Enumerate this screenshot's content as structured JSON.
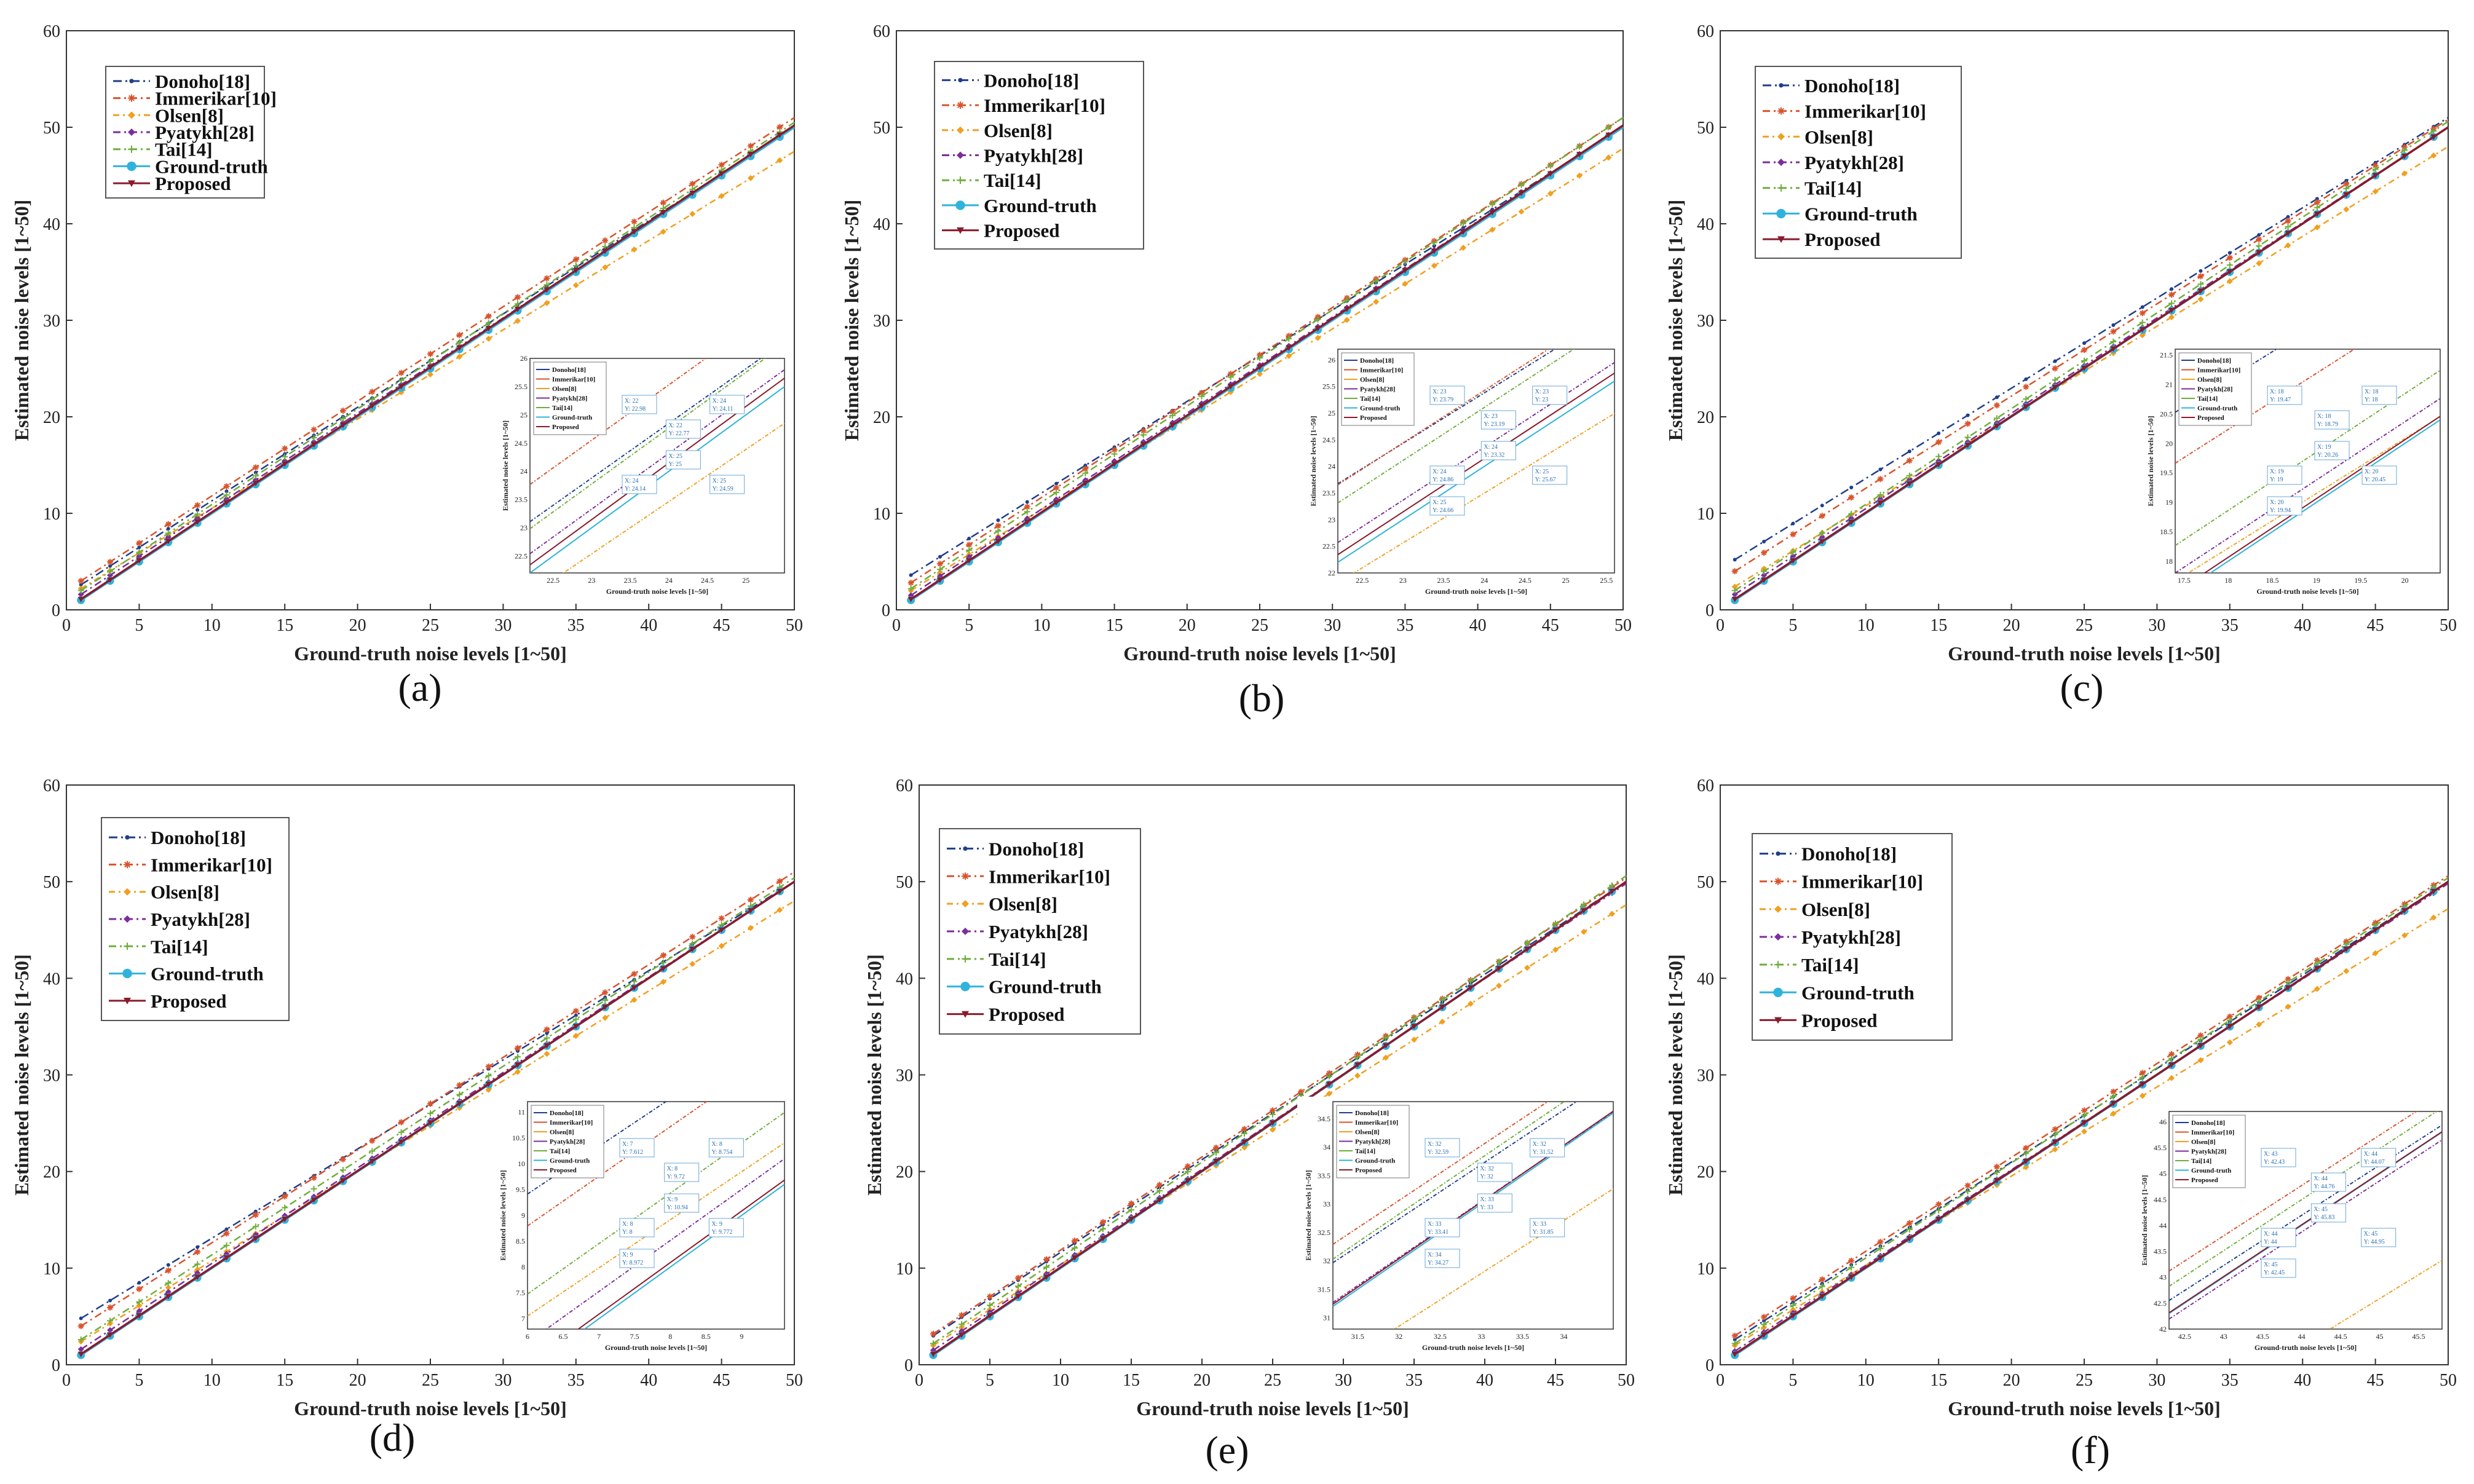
{
  "figure": {
    "panel_labels": [
      "(a)",
      "(b)",
      "(c)",
      "(d)",
      "(e)",
      "(f)"
    ]
  },
  "colors": {
    "Donoho[18]": "#1f3e8c",
    "Immerikar[10]": "#d9532b",
    "Olsen[8]": "#f0a020",
    "Pyatykh[28]": "#7b2e9c",
    "Tai[14]": "#6fae3a",
    "Ground-truth": "#2fb3dc",
    "Proposed": "#8b1a2b"
  },
  "chart_data": [
    {
      "type": "line",
      "panel": "(a)",
      "title": "",
      "xlabel": "Ground-truth noise levels [1~50]",
      "ylabel": "Estimated noise levels [1~50]",
      "xlim": [
        0,
        50
      ],
      "ylim": [
        0,
        60
      ],
      "xticks": [
        0,
        5,
        10,
        15,
        20,
        25,
        30,
        35,
        40,
        45,
        50
      ],
      "yticks": [
        0,
        10,
        20,
        30,
        40,
        50,
        60
      ],
      "legend_position": "top-left",
      "series": [
        {
          "name": "Donoho[18]",
          "x": [
            1,
            50
          ],
          "values": [
            2.6,
            50.0
          ]
        },
        {
          "name": "Immerikar[10]",
          "x": [
            1,
            50
          ],
          "values": [
            3.0,
            51.0
          ]
        },
        {
          "name": "Olsen[8]",
          "x": [
            1,
            50
          ],
          "values": [
            2.2,
            47.5
          ]
        },
        {
          "name": "Pyatykh[28]",
          "x": [
            1,
            50
          ],
          "values": [
            1.6,
            50.0
          ]
        },
        {
          "name": "Tai[14]",
          "x": [
            1,
            50
          ],
          "values": [
            2.0,
            50.5
          ]
        },
        {
          "name": "Ground-truth",
          "x": [
            1,
            50
          ],
          "values": [
            1.0,
            50.0
          ]
        },
        {
          "name": "Proposed",
          "x": [
            1,
            50
          ],
          "values": [
            1.1,
            50.2
          ]
        }
      ],
      "inset": {
        "xlabel": "Ground-truth noise levels [1~50]",
        "ylabel": "Estimated noise levels [1~50]",
        "xlim": [
          22.2,
          25.5
        ],
        "ylim": [
          22.2,
          26.0
        ],
        "xticks": [
          "22.5",
          "23",
          "23.5",
          "24",
          "24.5",
          "25"
        ],
        "yticks": [
          "22.5",
          "23",
          "23.5",
          "24",
          "24.5",
          "25",
          "25.5",
          "26"
        ],
        "callouts": [
          {
            "x": "X: 22",
            "y": "Y: 22.98"
          },
          {
            "x": "X: 22",
            "y": "Y: 22.77"
          },
          {
            "x": "X: 24",
            "y": "Y: 24.11"
          },
          {
            "x": "X: 24",
            "y": "Y: 24.14"
          },
          {
            "x": "X: 25",
            "y": "Y: 25"
          },
          {
            "x": "X: 25",
            "y": "Y: 24.59"
          }
        ]
      }
    },
    {
      "type": "line",
      "panel": "(b)",
      "title": "",
      "xlabel": "Ground-truth noise levels [1~50]",
      "ylabel": "Estimated noise levels [1~50]",
      "xlim": [
        0,
        50
      ],
      "ylim": [
        0,
        60
      ],
      "xticks": [
        0,
        5,
        10,
        15,
        20,
        25,
        30,
        35,
        40,
        45,
        50
      ],
      "yticks": [
        0,
        10,
        20,
        30,
        40,
        50,
        60
      ],
      "legend_position": "top-left",
      "series": [
        {
          "name": "Donoho[18]",
          "x": [
            1,
            50
          ],
          "values": [
            3.6,
            50.0
          ]
        },
        {
          "name": "Immerikar[10]",
          "x": [
            1,
            50
          ],
          "values": [
            2.8,
            51.0
          ]
        },
        {
          "name": "Olsen[8]",
          "x": [
            1,
            50
          ],
          "values": [
            2.0,
            47.8
          ]
        },
        {
          "name": "Pyatykh[28]",
          "x": [
            1,
            50
          ],
          "values": [
            1.5,
            50.2
          ]
        },
        {
          "name": "Tai[14]",
          "x": [
            1,
            50
          ],
          "values": [
            2.2,
            51.0
          ]
        },
        {
          "name": "Ground-truth",
          "x": [
            1,
            50
          ],
          "values": [
            1.0,
            50.0
          ]
        },
        {
          "name": "Proposed",
          "x": [
            1,
            50
          ],
          "values": [
            1.1,
            50.2
          ]
        }
      ],
      "inset": {
        "xlabel": "Ground-truth noise levels [1~50]",
        "ylabel": "Estimated noise levels [1~50]",
        "xlim": [
          22.2,
          25.6
        ],
        "ylim": [
          22.0,
          26.2
        ],
        "xticks": [
          "22.5",
          "23",
          "23.5",
          "24",
          "24.5",
          "25",
          "25.5"
        ],
        "yticks": [
          "22",
          "22.5",
          "23",
          "23.5",
          "24",
          "24.5",
          "25",
          "25.5",
          "26"
        ],
        "callouts": [
          {
            "x": "X: 23",
            "y": "Y: 23.79"
          },
          {
            "x": "X: 23",
            "y": "Y: 23.19"
          },
          {
            "x": "X: 23",
            "y": "Y: 23"
          },
          {
            "x": "X: 24",
            "y": "Y: 24.86"
          },
          {
            "x": "X: 24",
            "y": "Y: 23.32"
          },
          {
            "x": "X: 25",
            "y": "Y: 25.67"
          },
          {
            "x": "X: 25",
            "y": "Y: 24.66"
          }
        ]
      }
    },
    {
      "type": "line",
      "panel": "(c)",
      "title": "",
      "xlabel": "Ground-truth noise levels [1~50]",
      "ylabel": "Estimated noise levels [1~50]",
      "xlim": [
        0,
        50
      ],
      "ylim": [
        0,
        60
      ],
      "xticks": [
        0,
        5,
        10,
        15,
        20,
        25,
        30,
        35,
        40,
        45,
        50
      ],
      "yticks": [
        0,
        10,
        20,
        30,
        40,
        50,
        60
      ],
      "legend_position": "top-left",
      "series": [
        {
          "name": "Donoho[18]",
          "x": [
            1,
            50
          ],
          "values": [
            5.2,
            51.0
          ]
        },
        {
          "name": "Immerikar[10]",
          "x": [
            1,
            50
          ],
          "values": [
            4.0,
            50.8
          ]
        },
        {
          "name": "Olsen[8]",
          "x": [
            1,
            50
          ],
          "values": [
            2.4,
            48.0
          ]
        },
        {
          "name": "Pyatykh[28]",
          "x": [
            1,
            50
          ],
          "values": [
            1.6,
            50.0
          ]
        },
        {
          "name": "Tai[14]",
          "x": [
            1,
            50
          ],
          "values": [
            2.0,
            50.6
          ]
        },
        {
          "name": "Ground-truth",
          "x": [
            1,
            50
          ],
          "values": [
            1.0,
            50.0
          ]
        },
        {
          "name": "Proposed",
          "x": [
            1,
            50
          ],
          "values": [
            1.1,
            50.0
          ]
        }
      ],
      "inset": {
        "xlabel": "Ground-truth noise levels [1~50]",
        "ylabel": "Estimated noise levels [1~50]",
        "xlim": [
          17.4,
          20.4
        ],
        "ylim": [
          17.8,
          21.6
        ],
        "xticks": [
          "17.5",
          "18",
          "18.5",
          "19",
          "19.5",
          "20"
        ],
        "yticks": [
          "18",
          "18.5",
          "19",
          "19.5",
          "20",
          "20.5",
          "21",
          "21.5"
        ],
        "callouts": [
          {
            "x": "X: 18",
            "y": "Y: 19.47"
          },
          {
            "x": "X: 18",
            "y": "Y: 18.79"
          },
          {
            "x": "X: 18",
            "y": "Y: 18"
          },
          {
            "x": "X: 19",
            "y": "Y: 19"
          },
          {
            "x": "X: 19",
            "y": "Y: 20.26"
          },
          {
            "x": "X: 20",
            "y": "Y: 20.45"
          },
          {
            "x": "X: 20",
            "y": "Y: 19.94"
          }
        ]
      }
    },
    {
      "type": "line",
      "panel": "(d)",
      "title": "",
      "xlabel": "Ground-truth noise levels [1~50]",
      "ylabel": "Estimated noise levels [1~50]",
      "xlim": [
        0,
        50
      ],
      "ylim": [
        0,
        60
      ],
      "xticks": [
        0,
        5,
        10,
        15,
        20,
        25,
        30,
        35,
        40,
        45,
        50
      ],
      "yticks": [
        0,
        10,
        20,
        30,
        40,
        50,
        60
      ],
      "legend_position": "top-left",
      "series": [
        {
          "name": "Donoho[18]",
          "x": [
            1,
            50
          ],
          "values": [
            4.8,
            50.0
          ]
        },
        {
          "name": "Immerikar[10]",
          "x": [
            1,
            50
          ],
          "values": [
            4.0,
            51.0
          ]
        },
        {
          "name": "Olsen[8]",
          "x": [
            1,
            50
          ],
          "values": [
            2.4,
            48.0
          ]
        },
        {
          "name": "Pyatykh[28]",
          "x": [
            1,
            50
          ],
          "values": [
            1.6,
            50.0
          ]
        },
        {
          "name": "Tai[14]",
          "x": [
            1,
            50
          ],
          "values": [
            2.6,
            50.4
          ]
        },
        {
          "name": "Ground-truth",
          "x": [
            1,
            50
          ],
          "values": [
            1.0,
            50.0
          ]
        },
        {
          "name": "Proposed",
          "x": [
            1,
            50
          ],
          "values": [
            1.1,
            50.0
          ]
        }
      ],
      "inset": {
        "xlabel": "Ground-truth noise levels [1~50]",
        "ylabel": "Estimated noise levels [1~50]",
        "xlim": [
          6.0,
          9.6
        ],
        "ylim": [
          6.8,
          11.2
        ],
        "xticks": [
          "6",
          "6.5",
          "7",
          "7.5",
          "8",
          "8.5",
          "9"
        ],
        "yticks": [
          "7",
          "7.5",
          "8",
          "8.5",
          "9",
          "9.5",
          "10",
          "10.5",
          "11"
        ],
        "callouts": [
          {
            "x": "X: 7",
            "y": "Y: 7.612"
          },
          {
            "x": "X: 8",
            "y": "Y: 9.72"
          },
          {
            "x": "X: 8",
            "y": "Y: 8.754"
          },
          {
            "x": "X: 8",
            "y": "Y: 8"
          },
          {
            "x": "X: 9",
            "y": "Y: 10.94"
          },
          {
            "x": "X: 9",
            "y": "Y: 9.772"
          },
          {
            "x": "X: 9",
            "y": "Y: 8.972"
          }
        ]
      }
    },
    {
      "type": "line",
      "panel": "(e)",
      "title": "",
      "xlabel": "Ground-truth noise levels [1~50]",
      "ylabel": "Estimated noise levels [1~50]",
      "xlim": [
        0,
        50
      ],
      "ylim": [
        0,
        60
      ],
      "xticks": [
        0,
        5,
        10,
        15,
        20,
        25,
        30,
        35,
        40,
        45,
        50
      ],
      "yticks": [
        0,
        10,
        20,
        30,
        40,
        50,
        60
      ],
      "legend_position": "top-left",
      "series": [
        {
          "name": "Donoho[18]",
          "x": [
            1,
            50
          ],
          "values": [
            3.0,
            50.0
          ]
        },
        {
          "name": "Immerikar[10]",
          "x": [
            1,
            50
          ],
          "values": [
            3.2,
            50.4
          ]
        },
        {
          "name": "Olsen[8]",
          "x": [
            1,
            50
          ],
          "values": [
            2.0,
            47.6
          ]
        },
        {
          "name": "Pyatykh[28]",
          "x": [
            1,
            50
          ],
          "values": [
            1.5,
            49.8
          ]
        },
        {
          "name": "Tai[14]",
          "x": [
            1,
            50
          ],
          "values": [
            2.2,
            50.6
          ]
        },
        {
          "name": "Ground-truth",
          "x": [
            1,
            50
          ],
          "values": [
            1.0,
            50.0
          ]
        },
        {
          "name": "Proposed",
          "x": [
            1,
            50
          ],
          "values": [
            1.1,
            50.0
          ]
        }
      ],
      "inset": {
        "xlabel": "Ground-truth noise levels [1~50]",
        "ylabel": "Estimated noise levels [1~50]",
        "xlim": [
          31.2,
          34.6
        ],
        "ylim": [
          30.8,
          34.8
        ],
        "xticks": [
          "31.5",
          "32",
          "32.5",
          "33",
          "33.5",
          "34"
        ],
        "yticks": [
          "31",
          "31.5",
          "32",
          "32.5",
          "33",
          "33.5",
          "34",
          "34.5"
        ],
        "callouts": [
          {
            "x": "X: 32",
            "y": "Y: 32.59"
          },
          {
            "x": "X: 32",
            "y": "Y: 32"
          },
          {
            "x": "X: 32",
            "y": "Y: 31.52"
          },
          {
            "x": "X: 33",
            "y": "Y: 33.41"
          },
          {
            "x": "X: 33",
            "y": "Y: 33"
          },
          {
            "x": "X: 33",
            "y": "Y: 31.85"
          },
          {
            "x": "X: 34",
            "y": "Y: 34.27"
          }
        ]
      }
    },
    {
      "type": "line",
      "panel": "(f)",
      "title": "",
      "xlabel": "Ground-truth noise levels [1~50]",
      "ylabel": "Estimated noise levels [1~50]",
      "xlim": [
        0,
        50
      ],
      "ylim": [
        0,
        60
      ],
      "xticks": [
        0,
        5,
        10,
        15,
        20,
        25,
        30,
        35,
        40,
        45,
        50
      ],
      "yticks": [
        0,
        10,
        20,
        30,
        40,
        50,
        60
      ],
      "legend_position": "top-left",
      "series": [
        {
          "name": "Donoho[18]",
          "x": [
            1,
            50
          ],
          "values": [
            2.6,
            50.0
          ]
        },
        {
          "name": "Immerikar[10]",
          "x": [
            1,
            50
          ],
          "values": [
            3.0,
            50.6
          ]
        },
        {
          "name": "Olsen[8]",
          "x": [
            1,
            50
          ],
          "values": [
            2.0,
            47.2
          ]
        },
        {
          "name": "Pyatykh[28]",
          "x": [
            1,
            50
          ],
          "values": [
            1.4,
            49.8
          ]
        },
        {
          "name": "Tai[14]",
          "x": [
            1,
            50
          ],
          "values": [
            2.2,
            50.4
          ]
        },
        {
          "name": "Ground-truth",
          "x": [
            1,
            50
          ],
          "values": [
            1.0,
            50.0
          ]
        },
        {
          "name": "Proposed",
          "x": [
            1,
            50
          ],
          "values": [
            1.1,
            50.0
          ]
        }
      ],
      "inset": {
        "xlabel": "Ground-truth noise levels [1~50]",
        "ylabel": "Estimated noise levels [1~50]",
        "xlim": [
          42.3,
          45.8
        ],
        "ylim": [
          42.0,
          46.2
        ],
        "xticks": [
          "42.5",
          "43",
          "43.5",
          "44",
          "44.5",
          "45",
          "45.5"
        ],
        "yticks": [
          "42",
          "42.5",
          "43",
          "43.5",
          "44",
          "44.5",
          "45",
          "45.5",
          "46"
        ],
        "callouts": [
          {
            "x": "X: 43",
            "y": "Y: 42.43"
          },
          {
            "x": "X: 44",
            "y": "Y: 44.76"
          },
          {
            "x": "X: 44",
            "y": "Y: 44.07"
          },
          {
            "x": "X: 44",
            "y": "Y: 44"
          },
          {
            "x": "X: 45",
            "y": "Y: 45.83"
          },
          {
            "x": "X: 45",
            "y": "Y: 44.95"
          },
          {
            "x": "X: 45",
            "y": "Y: 42.45"
          }
        ]
      }
    }
  ]
}
